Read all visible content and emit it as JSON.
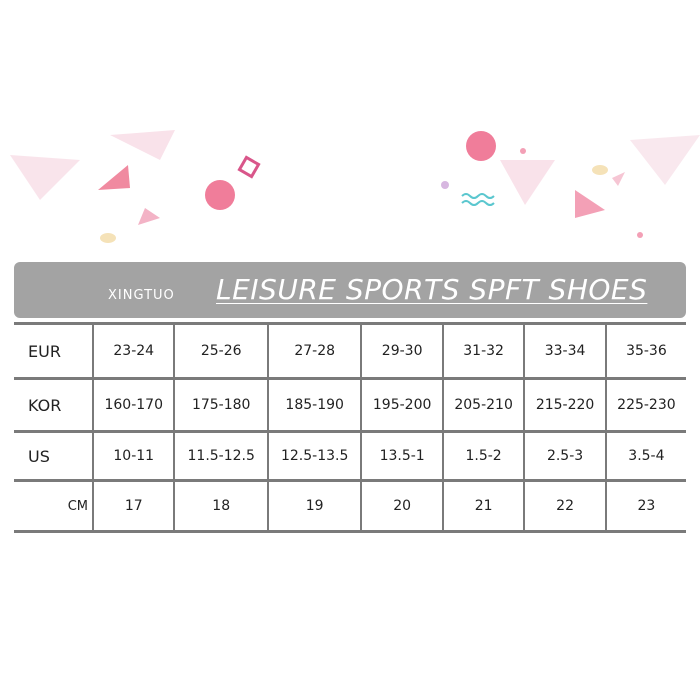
{
  "header": {
    "brand": "XINGTUO",
    "title": "LEISURE SPORTS SPFT SHOES"
  },
  "table": {
    "rows": [
      {
        "label": "EUR",
        "values": [
          "23-24",
          "25-26",
          "27-28",
          "29-30",
          "31-32",
          "33-34",
          "35-36"
        ]
      },
      {
        "label": "KOR",
        "values": [
          "160-170",
          "175-180",
          "185-190",
          "195-200",
          "205-210",
          "215-220",
          "225-230"
        ]
      },
      {
        "label": "US",
        "values": [
          "10-11",
          "11.5-12.5",
          "12.5-13.5",
          "13.5-1",
          "1.5-2",
          "2.5-3",
          "3.5-4"
        ]
      },
      {
        "label": "CM",
        "values": [
          "17",
          "18",
          "19",
          "20",
          "21",
          "22",
          "23"
        ]
      }
    ]
  },
  "colors": {
    "banner": "#a3a3a3",
    "accent_pink": "#f08aa0",
    "grid": "#7a7a7a"
  }
}
